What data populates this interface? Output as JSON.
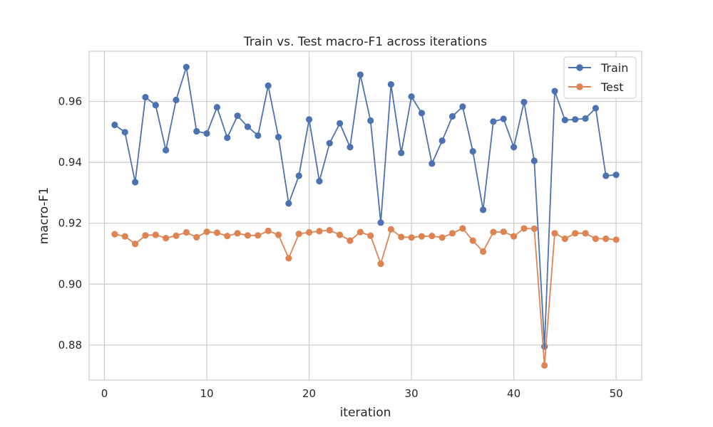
{
  "chart_data": {
    "type": "line",
    "title": "Train vs. Test macro-F1 across iterations",
    "xlabel": "iteration",
    "ylabel": "macro-F1",
    "xlim": [
      -1.5,
      52.5
    ],
    "ylim": [
      0.8685,
      0.9765
    ],
    "xticks": [
      0,
      10,
      20,
      30,
      40,
      50
    ],
    "xtick_labels": [
      "0",
      "10",
      "20",
      "30",
      "40",
      "50"
    ],
    "yticks": [
      0.88,
      0.9,
      0.92,
      0.94,
      0.96
    ],
    "ytick_labels": [
      "0.88",
      "0.90",
      "0.92",
      "0.94",
      "0.96"
    ],
    "grid": true,
    "legend_position": "top-right",
    "x": [
      1,
      2,
      3,
      4,
      5,
      6,
      7,
      8,
      9,
      10,
      11,
      12,
      13,
      14,
      15,
      16,
      17,
      18,
      19,
      20,
      21,
      22,
      23,
      24,
      25,
      26,
      27,
      28,
      29,
      30,
      31,
      32,
      33,
      34,
      35,
      36,
      37,
      38,
      39,
      40,
      41,
      42,
      43,
      44,
      45,
      46,
      47,
      48,
      49,
      50
    ],
    "series": [
      {
        "name": "Train",
        "color": "#4c72b0",
        "values": [
          0.9523,
          0.9499,
          0.9335,
          0.9614,
          0.9588,
          0.944,
          0.9605,
          0.9713,
          0.9502,
          0.9495,
          0.9581,
          0.9481,
          0.9553,
          0.9517,
          0.9488,
          0.9652,
          0.9483,
          0.9265,
          0.9356,
          0.9541,
          0.9338,
          0.9463,
          0.9528,
          0.945,
          0.9688,
          0.9537,
          0.9202,
          0.9656,
          0.9431,
          0.9616,
          0.9562,
          0.9396,
          0.9471,
          0.9551,
          0.9583,
          0.9436,
          0.9244,
          0.9534,
          0.9543,
          0.945,
          0.9598,
          0.9405,
          0.8795,
          0.9634,
          0.9539,
          0.9541,
          0.9544,
          0.9578,
          0.9356,
          0.9359
        ]
      },
      {
        "name": "Test",
        "color": "#dd8452",
        "values": [
          0.9164,
          0.9157,
          0.9132,
          0.916,
          0.9162,
          0.9151,
          0.9159,
          0.917,
          0.9154,
          0.9172,
          0.9169,
          0.9158,
          0.9167,
          0.916,
          0.916,
          0.9175,
          0.9162,
          0.9085,
          0.9165,
          0.917,
          0.9174,
          0.9177,
          0.9162,
          0.9143,
          0.9171,
          0.9159,
          0.9067,
          0.918,
          0.9155,
          0.9153,
          0.9157,
          0.9158,
          0.9153,
          0.9167,
          0.9183,
          0.9143,
          0.9107,
          0.9171,
          0.9172,
          0.9157,
          0.9183,
          0.9182,
          0.8733,
          0.9167,
          0.9149,
          0.9167,
          0.9167,
          0.9149,
          0.9149,
          0.9146
        ]
      }
    ]
  }
}
